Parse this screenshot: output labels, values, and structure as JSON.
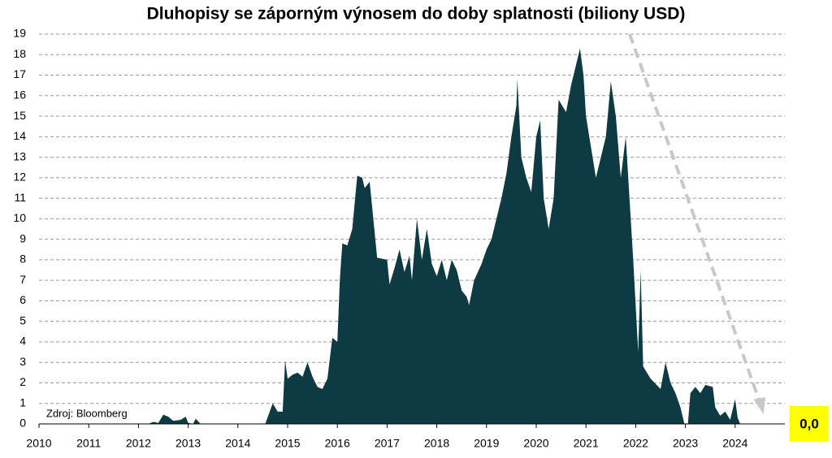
{
  "chart_data": {
    "type": "area",
    "title": "Dluhopisy se záporným výnosem do doby splatnosti (biliony USD)",
    "x": [
      2010.0,
      2012.2,
      2012.3,
      2012.4,
      2012.5,
      2012.6,
      2012.7,
      2012.85,
      2012.95,
      2013.0,
      2013.1,
      2013.15,
      2013.25,
      2014.55,
      2014.7,
      2014.8,
      2014.9,
      2014.95,
      2015.0,
      2015.1,
      2015.2,
      2015.3,
      2015.4,
      2015.5,
      2015.6,
      2015.7,
      2015.8,
      2015.9,
      2016.0,
      2016.05,
      2016.1,
      2016.2,
      2016.3,
      2016.4,
      2016.5,
      2016.55,
      2016.65,
      2016.8,
      2017.0,
      2017.05,
      2017.15,
      2017.25,
      2017.35,
      2017.45,
      2017.5,
      2017.6,
      2017.7,
      2017.8,
      2017.9,
      2018.0,
      2018.1,
      2018.2,
      2018.3,
      2018.4,
      2018.5,
      2018.6,
      2018.65,
      2018.75,
      2018.9,
      2019.0,
      2019.1,
      2019.2,
      2019.3,
      2019.4,
      2019.5,
      2019.6,
      2019.62,
      2019.7,
      2019.8,
      2019.9,
      2020.0,
      2020.08,
      2020.15,
      2020.25,
      2020.35,
      2020.45,
      2020.6,
      2020.7,
      2020.8,
      2020.88,
      2020.95,
      2021.0,
      2021.1,
      2021.2,
      2021.3,
      2021.4,
      2021.5,
      2021.6,
      2021.7,
      2021.8,
      2021.9,
      2021.95,
      2022.05,
      2022.1,
      2022.15,
      2022.3,
      2022.5,
      2022.6,
      2022.7,
      2022.8,
      2022.9,
      2022.98,
      2023.05,
      2023.1,
      2023.2,
      2023.3,
      2023.4,
      2023.55,
      2023.6,
      2023.7,
      2023.8,
      2023.9,
      2024.0,
      2024.05,
      2024.1
    ],
    "series": [
      {
        "color": "#0e3b43",
        "values": [
          0,
          0,
          0.1,
          0.05,
          0.45,
          0.35,
          0.15,
          0.2,
          0.35,
          0.05,
          0,
          0.25,
          0,
          0,
          1.0,
          0.6,
          0.6,
          3.1,
          2.2,
          2.4,
          2.5,
          2.3,
          3.0,
          2.3,
          1.8,
          1.7,
          2.2,
          4.2,
          4.0,
          7.0,
          8.8,
          8.7,
          9.5,
          12.1,
          12.0,
          11.5,
          11.8,
          8.1,
          8.0,
          6.8,
          7.6,
          8.5,
          7.4,
          8.2,
          7.0,
          10.0,
          8.0,
          9.5,
          7.8,
          7.2,
          8.0,
          7.0,
          8.0,
          7.5,
          6.5,
          6.2,
          5.8,
          7.0,
          7.8,
          8.5,
          9.0,
          10.0,
          11.0,
          12.2,
          14.0,
          15.5,
          16.8,
          13.0,
          12.0,
          11.3,
          14.0,
          14.8,
          11.0,
          9.5,
          11.0,
          15.8,
          15.2,
          16.5,
          17.5,
          18.3,
          17.0,
          15.0,
          13.5,
          12.0,
          13.0,
          14.0,
          16.7,
          15.0,
          12.0,
          14.0,
          10.0,
          8.0,
          3.5,
          7.5,
          2.8,
          2.2,
          1.7,
          3.0,
          2.0,
          1.5,
          0.8,
          0,
          0,
          1.5,
          1.8,
          1.5,
          1.9,
          1.8,
          0.8,
          0.4,
          0.6,
          0.2,
          1.2,
          0.3,
          0
        ]
      }
    ],
    "xlim": [
      2010,
      2025
    ],
    "xticks": [
      2010,
      2011,
      2012,
      2013,
      2014,
      2015,
      2016,
      2017,
      2018,
      2019,
      2020,
      2021,
      2022,
      2023,
      2024
    ],
    "ylim": [
      0,
      19
    ],
    "yticks": [
      0,
      1,
      2,
      3,
      4,
      5,
      6,
      7,
      8,
      9,
      10,
      11,
      12,
      13,
      14,
      15,
      16,
      17,
      18,
      19
    ],
    "grid": true,
    "source": "Zdroj: Bloomberg",
    "annotation": "0,0"
  }
}
